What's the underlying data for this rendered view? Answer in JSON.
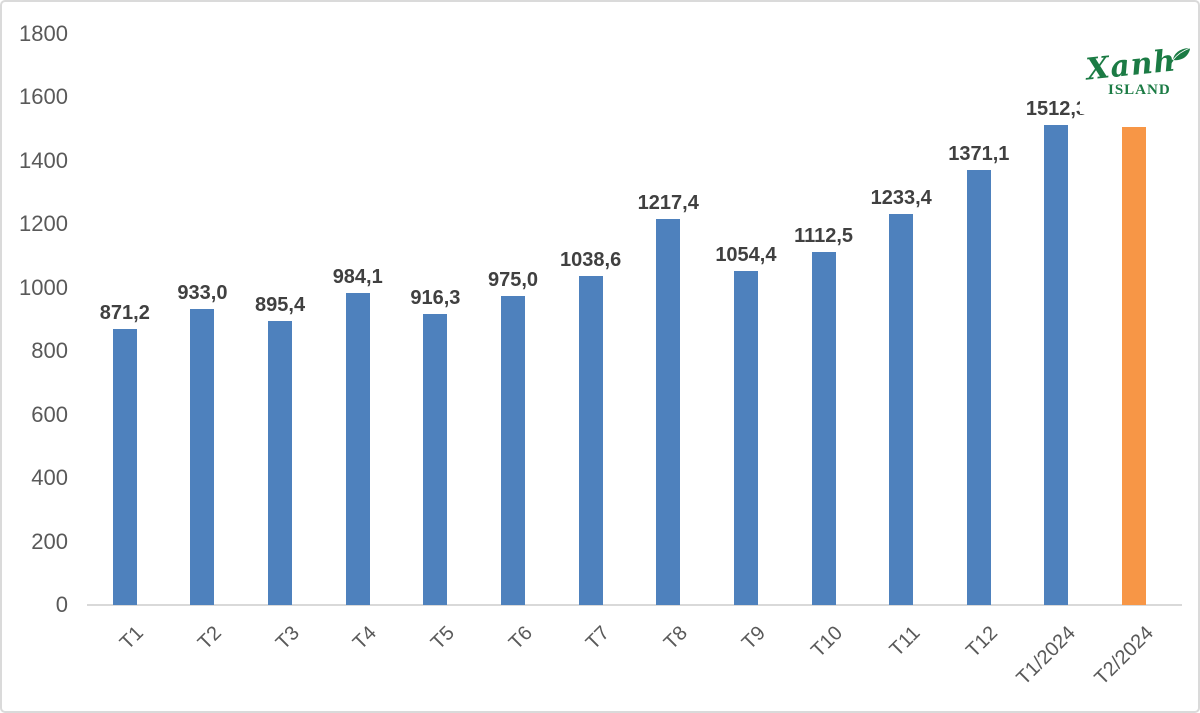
{
  "chart_data": {
    "type": "bar",
    "title": "",
    "xlabel": "",
    "ylabel": "",
    "categories": [
      "T1",
      "T2",
      "T3",
      "T4",
      "T5",
      "T6",
      "T7",
      "T8",
      "T9",
      "T10",
      "T11",
      "T12",
      "T1/2024",
      "T2/2024"
    ],
    "values": [
      871.2,
      933.0,
      895.4,
      984.1,
      916.3,
      975.0,
      1038.6,
      1217.4,
      1054.4,
      1112.5,
      1233.4,
      1371.1,
      1512.3,
      1508.0
    ],
    "data_labels": [
      "871,2",
      "933,0",
      "895,4",
      "984,1",
      "916,3",
      "975,0",
      "1038,6",
      "1217,4",
      "1054,4",
      "1112,5",
      "1233,4",
      "1371,1",
      "1512,3",
      ""
    ],
    "ylim": [
      0,
      1800
    ],
    "yticks": [
      0,
      200,
      400,
      600,
      800,
      1000,
      1200,
      1400,
      1600,
      1800
    ],
    "grid": false,
    "legend": false,
    "series_color": "#4E81BD",
    "highlight_color": "#F79646",
    "highlight_index": 13
  },
  "logo": {
    "line1": "Xanh",
    "line2": "ISLAND",
    "color": "#1B7B44"
  },
  "colors": {
    "bar_blue": "#4E81BD",
    "bar_orange": "#F79646",
    "data_label_text": "#404040",
    "axis_text": "#595959",
    "axis_line": "#D9D9D9",
    "figure_border": "#DADADA",
    "background": "#FFFFFF",
    "logo_green": "#1B7B44"
  }
}
